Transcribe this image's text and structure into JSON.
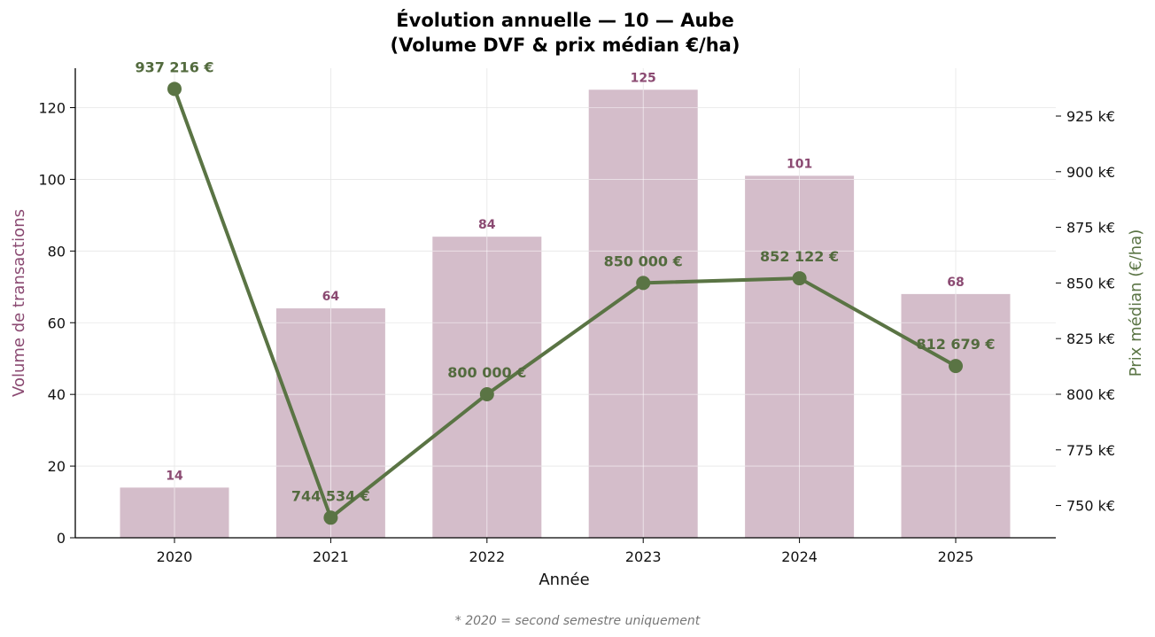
{
  "chart_data": {
    "type": "bar",
    "title_line1": "Évolution annuelle — 10 — Aube",
    "title_line2": "(Volume DVF & prix médian €/ha)",
    "xlabel": "Année",
    "ylabel_left": "Volume de transactions",
    "ylabel_right": "Prix médian (€/ha)",
    "footnote": "* 2020 = second semestre uniquement",
    "categories": [
      "2020",
      "2021",
      "2022",
      "2023",
      "2024",
      "2025"
    ],
    "series": [
      {
        "axis": "left",
        "kind": "bar",
        "values": [
          14,
          64,
          84,
          125,
          101,
          68
        ],
        "value_labels": [
          "14",
          "64",
          "84",
          "125",
          "101",
          "68"
        ],
        "color": "#d4bdca",
        "label_color": "#8b4a72"
      },
      {
        "axis": "right",
        "kind": "line",
        "values": [
          937216,
          744534,
          800000,
          850000,
          852122,
          812679
        ],
        "value_labels": [
          "937 216 €",
          "744 534 €",
          "800 000 €",
          "850 000 €",
          "852 122 €",
          "812 679 €"
        ],
        "color": "#5a7444",
        "label_color": "#536b3e"
      }
    ],
    "ylim_left": [
      0,
      131
    ],
    "yticks_left": [
      0,
      20,
      40,
      60,
      80,
      100,
      120
    ],
    "ytick_labels_left": [
      "0",
      "20",
      "40",
      "60",
      "80",
      "100",
      "120"
    ],
    "ylim_right": [
      735500,
      946500
    ],
    "yticks_right": [
      750000,
      775000,
      800000,
      825000,
      850000,
      875000,
      900000,
      925000
    ],
    "ytick_labels_right": [
      "750 k€",
      "775 k€",
      "800 k€",
      "825 k€",
      "850 k€",
      "875 k€",
      "900 k€",
      "925 k€"
    ],
    "grid": true,
    "colors": {
      "left_axis_label": "#8b4a72",
      "right_axis_label": "#5a7444",
      "grid": "#e6e6e6"
    }
  }
}
